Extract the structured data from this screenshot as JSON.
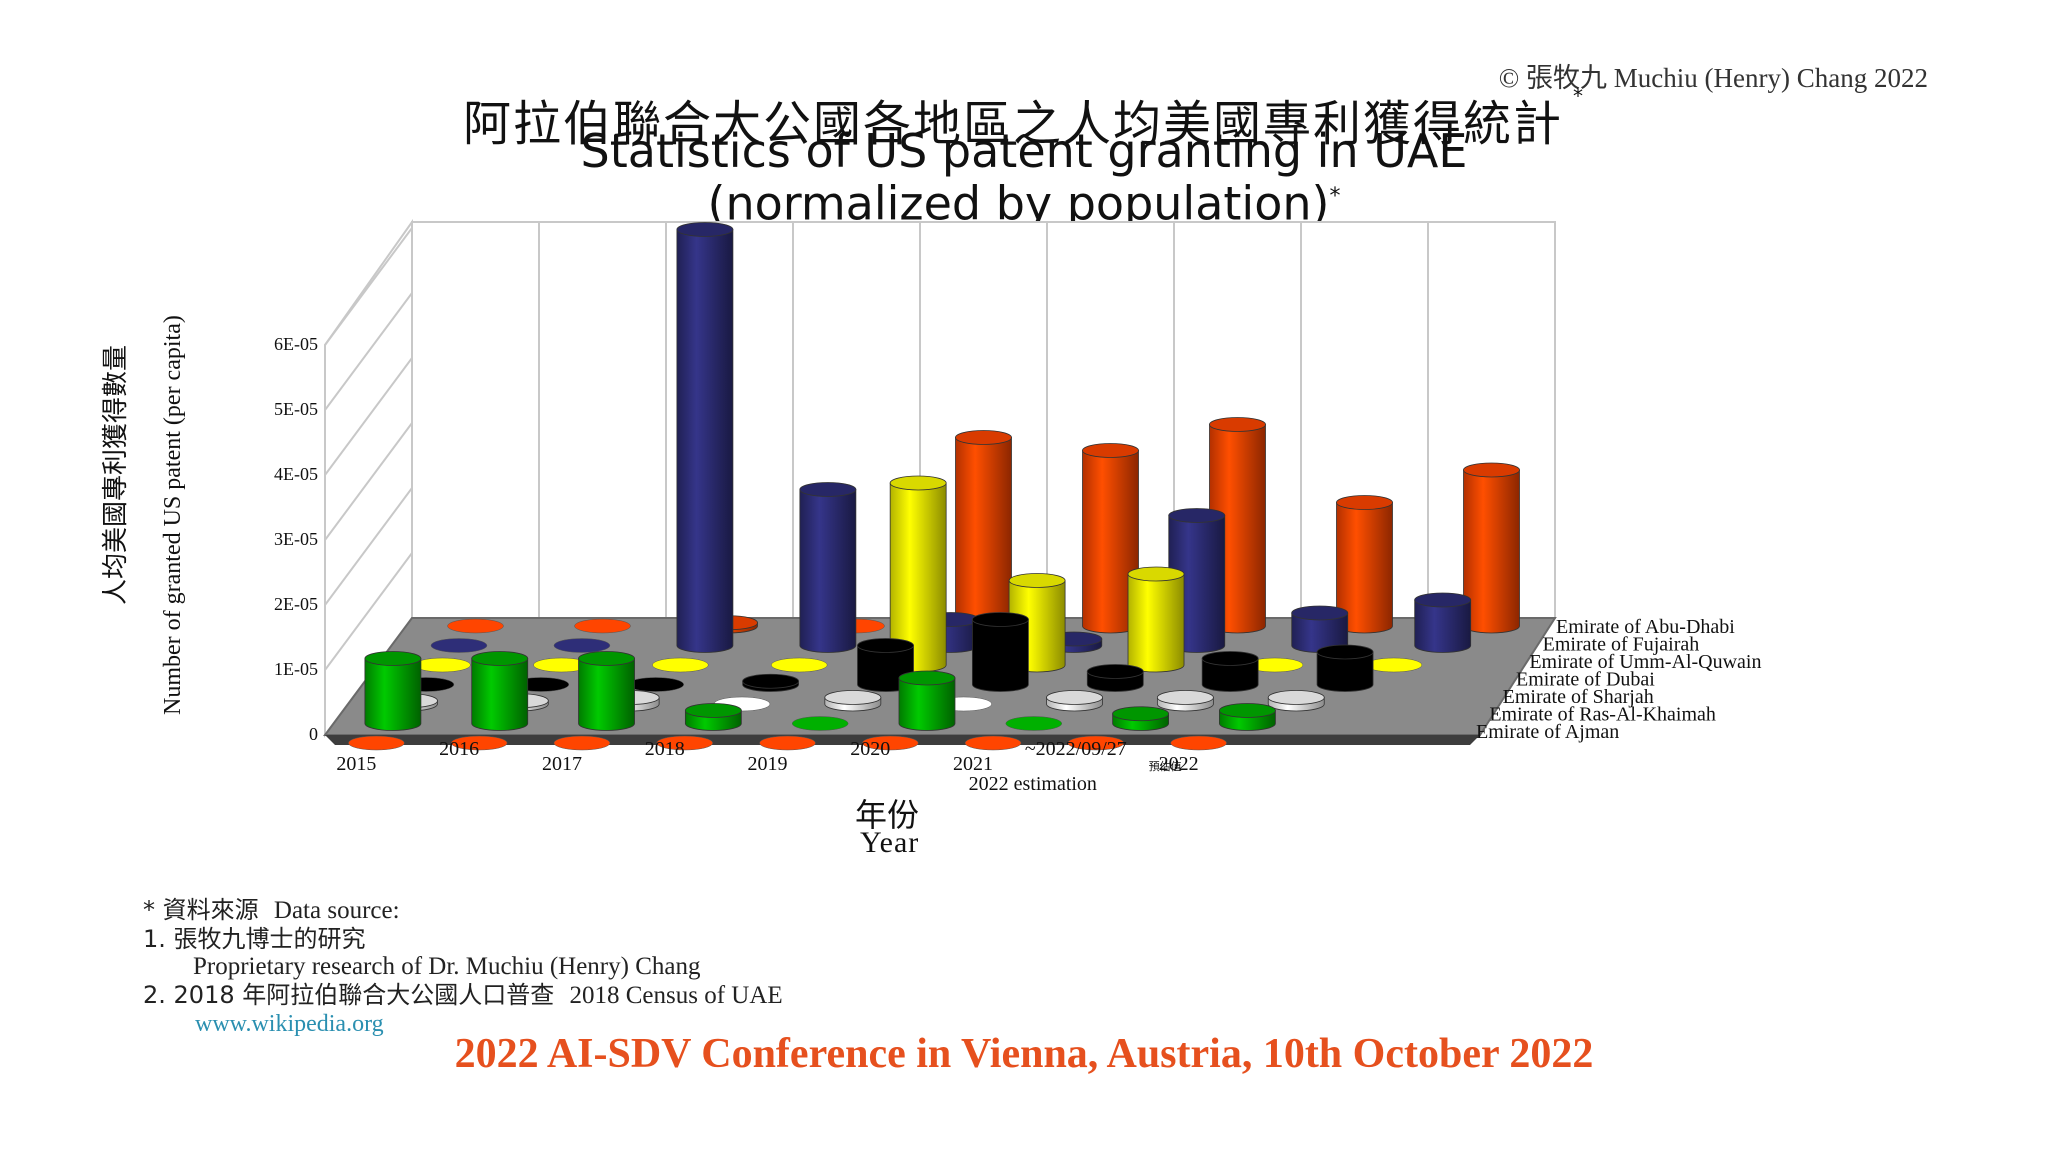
{
  "copyright": "©  張牧九 Muchiu (Henry) Chang 2022",
  "title_zh": "阿拉伯聯合大公國各地區之人均美國專利獲得統計",
  "title_star": "*",
  "title_en_line1": "Statistics of US patent granting in UAE",
  "title_en_line2": "(normalized by population)",
  "title_en_star": "*",
  "xaxis_zh": "年份",
  "xaxis_en": "Year",
  "yaxis_zh": "人均美國專利獲得數量",
  "yaxis_en": "Number of granted US patent (per capita)",
  "source": {
    "heading_zh": "* 資料來源",
    "heading_en": "Data source:",
    "item1_zh": "1. 張牧九博士的研究",
    "item1_en": "Proprietary research of Dr. Muchiu (Henry) Chang",
    "item2_zh": "2. 2018 年阿拉伯聯合大公國人口普查",
    "item2_en": "2018 Census of UAE",
    "item2_link": "www.wikipedia.org"
  },
  "conference": "2022 AI-SDV Conference in Vienna, Austria, 10th October 2022",
  "chart_data": {
    "type": "bar",
    "style": "3d-cylinder",
    "categories": [
      "2015",
      "2016",
      "2017",
      "2018",
      "2019",
      "2020",
      "2021",
      "~2022/09/27",
      "2022"
    ],
    "category_notes": {
      "2022": [
        "預估值",
        "2022 estimation"
      ]
    },
    "ylabel": "Number of granted US patent (per capita)",
    "yticks": [
      "0",
      "1E-05",
      "2E-05",
      "3E-05",
      "4E-05",
      "5E-05",
      "6E-05"
    ],
    "ylim": [
      0,
      7e-05
    ],
    "grid": true,
    "series": [
      {
        "name": "Emirate of Abu-Dhabi",
        "color": "#ff4500",
        "values": [
          0,
          0,
          5e-07,
          0,
          2.9e-05,
          2.7e-05,
          3.1e-05,
          1.9e-05,
          2.4e-05
        ]
      },
      {
        "name": "Emirate of Fujairah",
        "color": "#2e2e78",
        "values": [
          0,
          0,
          6.4e-05,
          2.4e-05,
          4e-06,
          1e-06,
          2e-05,
          5e-06,
          7e-06
        ]
      },
      {
        "name": "Emirate of Umm-Al-Quwain",
        "color": "#ffff00",
        "values": [
          0,
          0,
          0,
          0,
          2.8e-05,
          1.3e-05,
          1.4e-05,
          0,
          0
        ]
      },
      {
        "name": "Emirate of Dubai",
        "color": "#000000",
        "values": [
          0,
          0,
          0,
          5e-07,
          6e-06,
          1e-05,
          2e-06,
          4e-06,
          5e-06
        ]
      },
      {
        "name": "Emirate of Sharjah",
        "color": "#ffffff",
        "values": [
          5e-07,
          5e-07,
          1e-06,
          0,
          1e-06,
          0,
          1e-06,
          1e-06,
          1e-06
        ]
      },
      {
        "name": "Emirate of Ras-Al-Khaimah",
        "color": "#00b000",
        "values": [
          1e-05,
          1e-05,
          1e-05,
          2e-06,
          0,
          7e-06,
          0,
          1.5e-06,
          2e-06
        ]
      },
      {
        "name": "Emirate of Ajman",
        "color": "#ff4500",
        "values": [
          0,
          0,
          0,
          0,
          0,
          0,
          0,
          0,
          0
        ]
      }
    ]
  }
}
